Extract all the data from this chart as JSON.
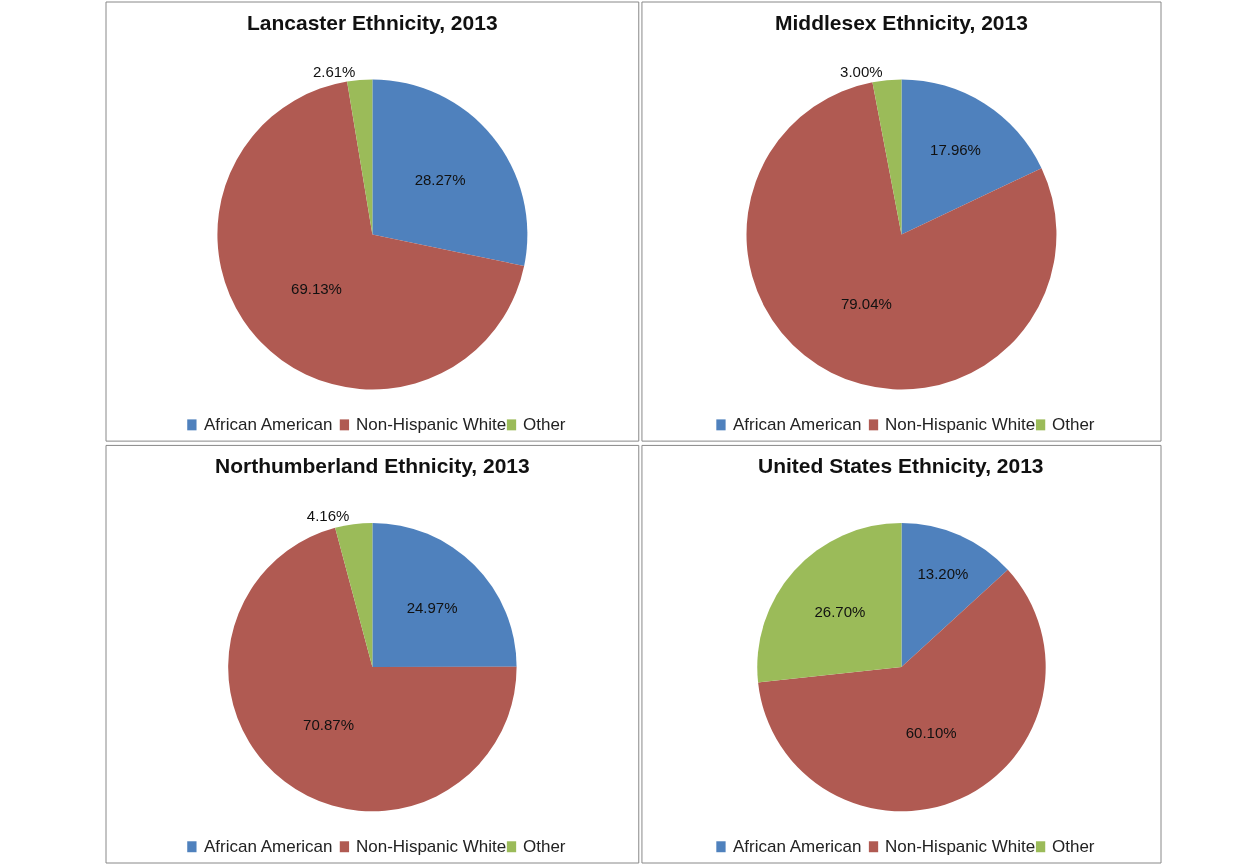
{
  "chart_data": [
    {
      "type": "pie",
      "title": "Lancaster Ethnicity, 2013",
      "categories": [
        "African American",
        "Non-Hispanic White",
        "Other"
      ],
      "values": [
        28.27,
        69.13,
        2.61
      ],
      "value_labels": [
        "28.27%",
        "69.13%",
        "2.61%"
      ],
      "colors": [
        "#4f81bd",
        "#b05a52",
        "#9bbb59"
      ],
      "legend": "bottom"
    },
    {
      "type": "pie",
      "title": "Middlesex Ethnicity, 2013",
      "categories": [
        "African American",
        "Non-Hispanic White",
        "Other"
      ],
      "values": [
        17.96,
        79.04,
        3.0
      ],
      "value_labels": [
        "17.96%",
        "79.04%",
        "3.00%"
      ],
      "colors": [
        "#4f81bd",
        "#b05a52",
        "#9bbb59"
      ],
      "legend": "bottom"
    },
    {
      "type": "pie",
      "title": "Northumberland Ethnicity, 2013",
      "categories": [
        "African American",
        "Non-Hispanic White",
        "Other"
      ],
      "values": [
        24.97,
        70.87,
        4.16
      ],
      "value_labels": [
        "24.97%",
        "70.87%",
        "4.16%"
      ],
      "colors": [
        "#4f81bd",
        "#b05a52",
        "#9bbb59"
      ],
      "legend": "bottom"
    },
    {
      "type": "pie",
      "title": "United States Ethnicity, 2013",
      "categories": [
        "African American",
        "Non-Hispanic White",
        "Other"
      ],
      "values": [
        13.2,
        60.1,
        26.7
      ],
      "value_labels": [
        "13.20%",
        "60.10%",
        "26.70%"
      ],
      "colors": [
        "#4f81bd",
        "#b05a52",
        "#9bbb59"
      ],
      "legend": "bottom"
    }
  ]
}
